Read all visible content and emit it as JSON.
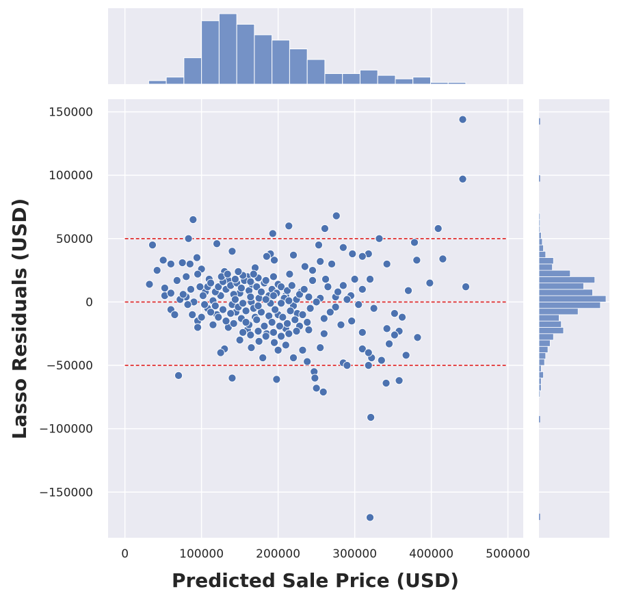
{
  "chart_data": {
    "type": "scatter",
    "style": "jointplot with marginal histograms",
    "xlabel": "Predicted Sale Price (USD)",
    "ylabel": "Lasso Residuals (USD)",
    "xlim": [
      -22000,
      520000
    ],
    "ylim": [
      -186000,
      160000
    ],
    "x_ticks": [
      0,
      100000,
      200000,
      300000,
      400000,
      500000
    ],
    "x_tick_labels": [
      "0",
      "100000",
      "200000",
      "300000",
      "400000",
      "500000"
    ],
    "y_ticks": [
      150000,
      100000,
      50000,
      0,
      -50000,
      -100000,
      -150000
    ],
    "y_tick_labels": [
      "150000",
      "100000",
      "50000",
      "0",
      "−50000",
      "−100000",
      "−150000"
    ],
    "grid": true,
    "colors": {
      "background": "#eaeaf2",
      "points": "#4c72b0",
      "histogram": "#7592c6",
      "reference_lines": "#e02020"
    },
    "reference_lines": [
      {
        "y": 50000,
        "style": "dashed"
      },
      {
        "y": 0,
        "style": "dashed"
      },
      {
        "y": -50000,
        "style": "dashed"
      }
    ],
    "points": [
      [
        441000,
        144000
      ],
      [
        441000,
        97000
      ],
      [
        320000,
        -170000
      ],
      [
        321000,
        -91000
      ],
      [
        89000,
        65000
      ],
      [
        214000,
        60000
      ],
      [
        276000,
        68000
      ],
      [
        261000,
        58000
      ],
      [
        409000,
        58000
      ],
      [
        193000,
        54000
      ],
      [
        83000,
        50000
      ],
      [
        332000,
        50000
      ],
      [
        36000,
        45000
      ],
      [
        120000,
        46000
      ],
      [
        253000,
        45000
      ],
      [
        378000,
        47000
      ],
      [
        285000,
        43000
      ],
      [
        140000,
        40000
      ],
      [
        190000,
        38000
      ],
      [
        220000,
        37000
      ],
      [
        297000,
        38000
      ],
      [
        318000,
        38000
      ],
      [
        310000,
        36000
      ],
      [
        185000,
        36000
      ],
      [
        50000,
        33000
      ],
      [
        94000,
        35000
      ],
      [
        255000,
        32000
      ],
      [
        270000,
        30000
      ],
      [
        342000,
        30000
      ],
      [
        381000,
        33000
      ],
      [
        415000,
        34000
      ],
      [
        75000,
        31000
      ],
      [
        85000,
        30000
      ],
      [
        195000,
        33000
      ],
      [
        235000,
        28000
      ],
      [
        42000,
        25000
      ],
      [
        60000,
        30000
      ],
      [
        100000,
        26000
      ],
      [
        130000,
        24000
      ],
      [
        170000,
        27000
      ],
      [
        215000,
        22000
      ],
      [
        300000,
        18000
      ],
      [
        320000,
        18000
      ],
      [
        398000,
        15000
      ],
      [
        32000,
        14000
      ],
      [
        52000,
        11000
      ],
      [
        68000,
        17000
      ],
      [
        95000,
        22000
      ],
      [
        110000,
        18000
      ],
      [
        135000,
        17000
      ],
      [
        160000,
        20000
      ],
      [
        200000,
        14000
      ],
      [
        245000,
        17000
      ],
      [
        265000,
        12000
      ],
      [
        285000,
        13000
      ],
      [
        310000,
        10000
      ],
      [
        370000,
        9000
      ],
      [
        445000,
        12000
      ],
      [
        52000,
        5000
      ],
      [
        60000,
        7000
      ],
      [
        80000,
        4000
      ],
      [
        105000,
        8000
      ],
      [
        125000,
        5000
      ],
      [
        150000,
        7000
      ],
      [
        175000,
        3000
      ],
      [
        210000,
        5000
      ],
      [
        230000,
        8000
      ],
      [
        255000,
        3000
      ],
      [
        275000,
        4000
      ],
      [
        295000,
        5000
      ],
      [
        72000,
        2000
      ],
      [
        90000,
        0
      ],
      [
        115000,
        1000
      ],
      [
        140000,
        -2000
      ],
      [
        165000,
        0
      ],
      [
        190000,
        -1000
      ],
      [
        220000,
        -3000
      ],
      [
        250000,
        0
      ],
      [
        275000,
        -4000
      ],
      [
        325000,
        -5000
      ],
      [
        60000,
        -6000
      ],
      [
        65000,
        -10000
      ],
      [
        95000,
        -15000
      ],
      [
        120000,
        -10000
      ],
      [
        145000,
        -8000
      ],
      [
        170000,
        -12000
      ],
      [
        200000,
        -10000
      ],
      [
        225000,
        -9000
      ],
      [
        260000,
        -13000
      ],
      [
        352000,
        -9000
      ],
      [
        362000,
        -12000
      ],
      [
        95000,
        -20000
      ],
      [
        115000,
        -18000
      ],
      [
        135000,
        -20000
      ],
      [
        160000,
        -22000
      ],
      [
        185000,
        -25000
      ],
      [
        210000,
        -21000
      ],
      [
        240000,
        -22000
      ],
      [
        260000,
        -25000
      ],
      [
        310000,
        -24000
      ],
      [
        342000,
        -21000
      ],
      [
        358000,
        -23000
      ],
      [
        352000,
        -26000
      ],
      [
        130000,
        -37000
      ],
      [
        150000,
        -30000
      ],
      [
        175000,
        -31000
      ],
      [
        195000,
        -32000
      ],
      [
        210000,
        -34000
      ],
      [
        232000,
        -38000
      ],
      [
        255000,
        -36000
      ],
      [
        285000,
        -48000
      ],
      [
        290000,
        -50000
      ],
      [
        318000,
        -50000
      ],
      [
        382000,
        -28000
      ],
      [
        345000,
        -33000
      ],
      [
        367000,
        -42000
      ],
      [
        125000,
        -40000
      ],
      [
        165000,
        -36000
      ],
      [
        180000,
        -44000
      ],
      [
        200000,
        -38000
      ],
      [
        220000,
        -44000
      ],
      [
        238000,
        -47000
      ],
      [
        247000,
        -55000
      ],
      [
        248000,
        -60000
      ],
      [
        322000,
        -44000
      ],
      [
        335000,
        -46000
      ],
      [
        198000,
        -61000
      ],
      [
        140000,
        -60000
      ],
      [
        70000,
        -58000
      ],
      [
        250000,
        -68000
      ],
      [
        259000,
        -71000
      ],
      [
        341000,
        -64000
      ],
      [
        358000,
        -62000
      ],
      [
        310000,
        -37000
      ],
      [
        318000,
        -40000
      ],
      [
        108000,
        12000
      ],
      [
        112000,
        15000
      ],
      [
        118000,
        8000
      ],
      [
        122000,
        12000
      ],
      [
        128000,
        16000
      ],
      [
        132000,
        10000
      ],
      [
        138000,
        13000
      ],
      [
        142000,
        6000
      ],
      [
        146000,
        15000
      ],
      [
        152000,
        11000
      ],
      [
        156000,
        17000
      ],
      [
        162000,
        9000
      ],
      [
        166000,
        14000
      ],
      [
        172000,
        12000
      ],
      [
        178000,
        8000
      ],
      [
        182000,
        15000
      ],
      [
        188000,
        5000
      ],
      [
        192000,
        10000
      ],
      [
        198000,
        7000
      ],
      [
        204000,
        12000
      ],
      [
        208000,
        3000
      ],
      [
        212000,
        9000
      ],
      [
        218000,
        13000
      ],
      [
        224000,
        2000
      ],
      [
        228000,
        6000
      ],
      [
        234000,
        10000
      ],
      [
        240000,
        4000
      ],
      [
        108000,
        -5000
      ],
      [
        112000,
        -8000
      ],
      [
        118000,
        -3000
      ],
      [
        122000,
        -12000
      ],
      [
        128000,
        -6000
      ],
      [
        132000,
        -15000
      ],
      [
        138000,
        -9000
      ],
      [
        142000,
        -17000
      ],
      [
        148000,
        -4000
      ],
      [
        152000,
        -13000
      ],
      [
        158000,
        -7000
      ],
      [
        162000,
        -18000
      ],
      [
        168000,
        -5000
      ],
      [
        172000,
        -14000
      ],
      [
        178000,
        -8000
      ],
      [
        182000,
        -19000
      ],
      [
        188000,
        -11000
      ],
      [
        192000,
        -16000
      ],
      [
        196000,
        -6000
      ],
      [
        202000,
        -19000
      ],
      [
        206000,
        -12000
      ],
      [
        212000,
        -17000
      ],
      [
        216000,
        -7000
      ],
      [
        222000,
        -14000
      ],
      [
        228000,
        -19000
      ],
      [
        232000,
        -10000
      ],
      [
        238000,
        -16000
      ],
      [
        242000,
        -5000
      ],
      [
        102000,
        5000
      ],
      [
        104000,
        -2000
      ],
      [
        126000,
        20000
      ],
      [
        134000,
        22000
      ],
      [
        144000,
        18000
      ],
      [
        154000,
        21000
      ],
      [
        164000,
        16000
      ],
      [
        174000,
        19000
      ],
      [
        184000,
        17000
      ],
      [
        194000,
        20000
      ],
      [
        154000,
        -24000
      ],
      [
        164000,
        -26000
      ],
      [
        174000,
        -23000
      ],
      [
        184000,
        -27000
      ],
      [
        194000,
        -24000
      ],
      [
        204000,
        -27000
      ],
      [
        214000,
        -25000
      ],
      [
        224000,
        -23000
      ],
      [
        144000,
        2000
      ],
      [
        154000,
        -1000
      ],
      [
        164000,
        4000
      ],
      [
        174000,
        -3000
      ],
      [
        184000,
        2000
      ],
      [
        194000,
        5000
      ],
      [
        204000,
        -1000
      ],
      [
        214000,
        1000
      ],
      [
        86000,
        10000
      ],
      [
        88000,
        -10000
      ],
      [
        98000,
        12000
      ],
      [
        100000,
        -12000
      ],
      [
        245000,
        25000
      ],
      [
        262000,
        18000
      ],
      [
        278000,
        8000
      ],
      [
        290000,
        2000
      ],
      [
        305000,
        -2000
      ],
      [
        268000,
        -8000
      ],
      [
        282000,
        -18000
      ],
      [
        296000,
        -15000
      ],
      [
        80000,
        20000
      ],
      [
        76000,
        6000
      ],
      [
        82000,
        -2000
      ],
      [
        148000,
        24000
      ],
      [
        158000,
        -16000
      ],
      [
        168000,
        22000
      ]
    ],
    "x_histogram": {
      "bin_edges": [
        31000,
        54000,
        77000,
        100000,
        123000,
        146000,
        169000,
        192000,
        215000,
        238000,
        261000,
        284000,
        307000,
        330000,
        353000,
        376000,
        399000,
        422000,
        445000
      ],
      "counts": [
        2,
        4,
        15,
        36,
        40,
        34,
        28,
        25,
        20,
        14,
        6,
        6,
        8,
        5,
        3,
        4,
        1,
        1
      ]
    },
    "y_histogram": {
      "bin_edges": [
        -75000,
        -70000,
        -65000,
        -60000,
        -55000,
        -50000,
        -45000,
        -40000,
        -35000,
        -30000,
        -25000,
        -20000,
        -15000,
        -10000,
        -5000,
        0,
        5000,
        10000,
        15000,
        20000,
        25000,
        30000,
        35000,
        40000,
        45000,
        50000,
        55000,
        60000,
        65000,
        70000
      ],
      "counts": [
        1,
        2,
        2,
        4,
        2,
        5,
        6,
        8,
        10,
        13,
        22,
        20,
        18,
        35,
        55,
        60,
        48,
        40,
        50,
        28,
        12,
        13,
        6,
        4,
        3,
        2,
        1,
        1,
        1
      ],
      "outlier_bins": [
        {
          "range": [
            140000,
            145000
          ],
          "count": 1
        },
        {
          "range": [
            95000,
            100000
          ],
          "count": 1
        },
        {
          "range": [
            -95000,
            -90000
          ],
          "count": 1
        },
        {
          "range": [
            -172000,
            -167000
          ],
          "count": 1
        }
      ]
    }
  }
}
